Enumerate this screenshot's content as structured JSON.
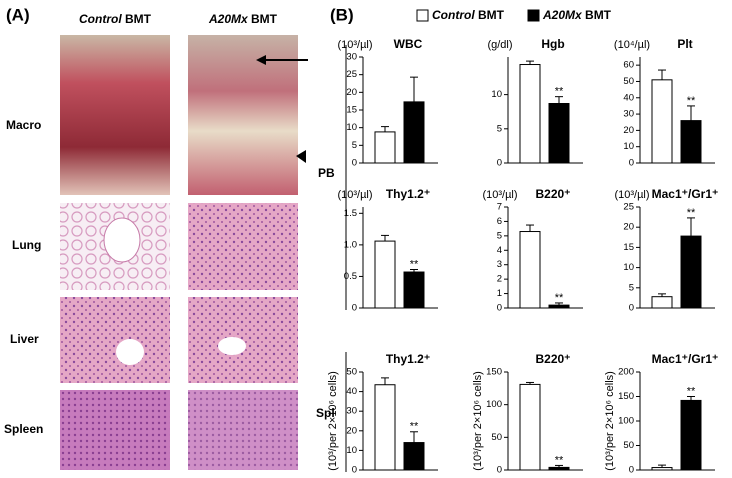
{
  "panel_a": {
    "label": "(A)",
    "columns": [
      "Control BMT",
      "A20Mx BMT"
    ],
    "rows": [
      "Macro",
      "Lung",
      "Liver",
      "Spleen"
    ]
  },
  "panel_b": {
    "label": "(B)",
    "legend": [
      {
        "name": "Control BMT",
        "color": "#ffffff"
      },
      {
        "name": "A20Mx BMT",
        "color": "#000000"
      }
    ],
    "groups": [
      "PB",
      "Spl"
    ]
  },
  "chart_data": [
    {
      "type": "bar",
      "title": "WBC",
      "ylabel": "(10³/µl)",
      "categories": [
        null,
        null
      ],
      "values": [
        8.8,
        17.3
      ],
      "errors": [
        1.5,
        7
      ],
      "colors": [
        "#ffffff",
        "#000000"
      ],
      "significance": [
        null,
        null
      ],
      "ylim": [
        0,
        30
      ],
      "yticks": [
        0,
        5,
        10,
        15,
        20,
        25,
        30
      ]
    },
    {
      "type": "bar",
      "title": "Hgb",
      "ylabel": "(g/dl)",
      "categories": [
        null,
        null
      ],
      "values": [
        14.4,
        8.7
      ],
      "errors": [
        0.5,
        1
      ],
      "colors": [
        "#ffffff",
        "#000000"
      ],
      "significance": [
        null,
        "**"
      ],
      "ylim": [
        0,
        15.5
      ],
      "yticks": [
        0,
        5,
        10
      ]
    },
    {
      "type": "bar",
      "title": "Plt",
      "ylabel": "(10⁴/µl)",
      "categories": [
        null,
        null
      ],
      "values": [
        51,
        26
      ],
      "errors": [
        6,
        9
      ],
      "colors": [
        "#ffffff",
        "#000000"
      ],
      "significance": [
        null,
        "**"
      ],
      "ylim": [
        0,
        65
      ],
      "yticks": [
        0,
        10,
        20,
        30,
        40,
        50,
        60
      ]
    },
    {
      "type": "bar",
      "title": "Thy1.2⁺",
      "ylabel": "(10³/µl)",
      "categories": [
        null,
        null
      ],
      "values": [
        1.06,
        0.57
      ],
      "errors": [
        0.09,
        0.04
      ],
      "colors": [
        "#ffffff",
        "#000000"
      ],
      "significance": [
        null,
        "**"
      ],
      "ylim": [
        0,
        1.6
      ],
      "yticks": [
        0,
        0.5,
        {
          "value": 1,
          "label": "1.0"
        },
        1.5
      ]
    },
    {
      "type": "bar",
      "title": "B220⁺",
      "ylabel": "(10³/µl)",
      "categories": [
        null,
        null
      ],
      "values": [
        5.3,
        0.2
      ],
      "errors": [
        0.45,
        0.15
      ],
      "colors": [
        "#ffffff",
        "#000000"
      ],
      "significance": [
        null,
        "**"
      ],
      "ylim": [
        0,
        7
      ],
      "yticks": [
        0,
        1,
        2,
        3,
        4,
        5,
        6,
        7
      ]
    },
    {
      "type": "bar",
      "title": "Mac1⁺/Gr1⁺",
      "ylabel": "(10³/µl)",
      "categories": [
        null,
        null
      ],
      "values": [
        2.8,
        17.8
      ],
      "errors": [
        0.7,
        4.5
      ],
      "colors": [
        "#ffffff",
        "#000000"
      ],
      "significance": [
        null,
        "**"
      ],
      "ylim": [
        0,
        25
      ],
      "yticks": [
        0,
        5,
        10,
        15,
        20,
        25
      ]
    },
    {
      "type": "bar",
      "title": "Thy1.2⁺",
      "ylabel": "(10³/per 2×10⁶ cells)",
      "categories": [
        null,
        null
      ],
      "values": [
        43.5,
        14
      ],
      "errors": [
        3.5,
        5.5
      ],
      "colors": [
        "#ffffff",
        "#000000"
      ],
      "significance": [
        null,
        "**"
      ],
      "ylim": [
        0,
        50
      ],
      "yticks": [
        0,
        10,
        20,
        30,
        40,
        50
      ]
    },
    {
      "type": "bar",
      "title": "B220⁺",
      "ylabel": "(10³/per 2×10⁶ cells)",
      "categories": [
        null,
        null
      ],
      "values": [
        131,
        4
      ],
      "errors": [
        3,
        3
      ],
      "colors": [
        "#ffffff",
        "#000000"
      ],
      "significance": [
        null,
        "**"
      ],
      "ylim": [
        0,
        150
      ],
      "yticks": [
        0,
        50,
        100,
        150
      ]
    },
    {
      "type": "bar",
      "title": "Mac1⁺/Gr1⁺",
      "ylabel": "(10³/per 2×10⁶ cells)",
      "categories": [
        null,
        null
      ],
      "values": [
        5,
        142
      ],
      "errors": [
        5,
        8
      ],
      "colors": [
        "#ffffff",
        "#000000"
      ],
      "significance": [
        null,
        "**"
      ],
      "ylim": [
        0,
        200
      ],
      "yticks": [
        0,
        50,
        100,
        150,
        200
      ]
    }
  ]
}
